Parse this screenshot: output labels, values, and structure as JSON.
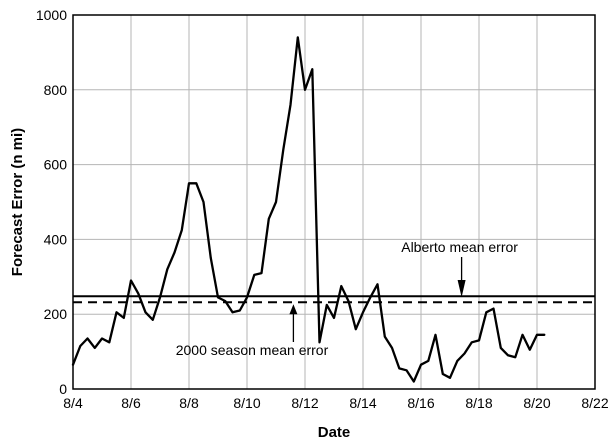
{
  "chart_data": {
    "type": "line",
    "xlabel": "Date",
    "ylabel": "Forecast Error (n mi)",
    "x_tick_labels": [
      "8/4",
      "8/6",
      "8/8",
      "8/10",
      "8/12",
      "8/14",
      "8/16",
      "8/18",
      "8/20",
      "8/22"
    ],
    "x_ticks": [
      4,
      6,
      8,
      10,
      12,
      14,
      16,
      18,
      20,
      22
    ],
    "xlim": [
      4,
      22
    ],
    "ylim": [
      0,
      1000
    ],
    "y_ticks": [
      0,
      200,
      400,
      600,
      800,
      1000
    ],
    "grid": true,
    "series": [
      {
        "x": [
          4.0,
          4.25,
          4.5,
          4.75,
          5.0,
          5.25,
          5.5,
          5.75,
          6.0,
          6.25,
          6.5,
          6.75,
          7.0,
          7.25,
          7.5,
          7.75,
          8.0,
          8.25,
          8.5,
          8.75,
          9.0,
          9.25,
          9.5,
          9.75,
          10.0,
          10.25,
          10.5,
          10.75,
          11.0,
          11.25,
          11.5,
          11.75,
          12.0,
          12.25,
          12.5,
          12.75,
          13.0,
          13.25,
          13.5,
          13.75,
          14.0,
          14.25,
          14.5,
          14.75,
          15.0,
          15.25,
          15.5,
          15.75,
          16.0,
          16.25,
          16.5,
          16.75,
          17.0,
          17.25,
          17.5,
          17.75,
          18.0,
          18.25,
          18.5,
          18.75,
          19.0,
          19.25,
          19.5,
          19.75,
          20.0,
          20.25
        ],
        "values": [
          65,
          115,
          135,
          110,
          135,
          125,
          205,
          190,
          290,
          255,
          205,
          185,
          245,
          320,
          365,
          425,
          550,
          550,
          500,
          350,
          245,
          235,
          205,
          210,
          245,
          305,
          310,
          455,
          500,
          640,
          760,
          940,
          800,
          855,
          125,
          225,
          190,
          275,
          235,
          160,
          205,
          245,
          280,
          140,
          110,
          55,
          50,
          20,
          65,
          75,
          145,
          40,
          30,
          75,
          95,
          125,
          130,
          205,
          215,
          110,
          90,
          85,
          145,
          105,
          145,
          145
        ]
      }
    ],
    "reference_lines": [
      {
        "value": 248,
        "style": "solid",
        "label": "Alberto mean error",
        "arrow_x": 17.4
      },
      {
        "value": 232,
        "style": "dashed",
        "label": "2000 season mean error",
        "arrow_x": 11.6
      }
    ]
  }
}
